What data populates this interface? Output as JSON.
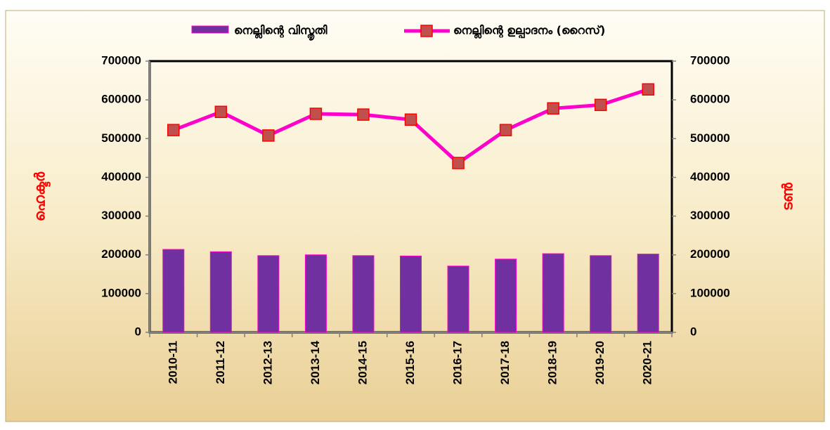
{
  "chart_data": {
    "type": "bar-line",
    "categories": [
      "2010-11",
      "2011-12",
      "2012-13",
      "2013-14",
      "2014-15",
      "2015-16",
      "2016-17",
      "2017-18",
      "2018-19",
      "2019-20",
      "2020-21"
    ],
    "series": [
      {
        "name": "നെല്ലിന്റെ  വിസ്തൃതി",
        "type": "bar",
        "axis": "y",
        "color": "#7030a0",
        "edge_color": "#ff00cc",
        "values": [
          214000,
          208000,
          198000,
          200000,
          198000,
          197000,
          171000,
          189000,
          203000,
          198000,
          202000
        ]
      },
      {
        "name": "നെല്ലിന്റെ ഉല്പാദനം (റൈസ്)",
        "type": "line",
        "axis": "y2",
        "color": "#ff00cc",
        "marker_color": "#c0504d",
        "values": [
          522000,
          569000,
          508000,
          564000,
          562000,
          549000,
          437000,
          522000,
          578000,
          587000,
          627000
        ]
      }
    ],
    "ylabel": "ഹെക്ടർ",
    "y2label": "ടൺ",
    "ylim": [
      0,
      700000
    ],
    "yticks": [
      0,
      100000,
      200000,
      300000,
      400000,
      500000,
      600000,
      700000
    ],
    "y2lim": [
      0,
      700000
    ],
    "y2ticks": [
      0,
      100000,
      200000,
      300000,
      400000,
      500000,
      600000,
      700000
    ],
    "legend": "top"
  }
}
